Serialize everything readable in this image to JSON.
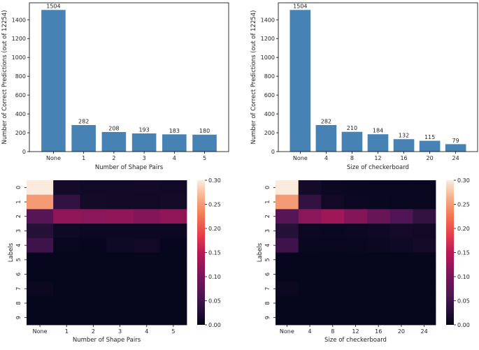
{
  "chart_data": [
    {
      "id": "bar-left",
      "type": "bar",
      "title": "",
      "xlabel": "Number of Shape Pairs",
      "ylabel": "Number of Correct Predictions (out of 12254)",
      "categories": [
        "None",
        "1",
        "2",
        "3",
        "4",
        "5"
      ],
      "values": [
        1504,
        282,
        208,
        193,
        183,
        180
      ],
      "data_labels": [
        "1504",
        "282",
        "208",
        "193",
        "183",
        "180"
      ],
      "ylim": [
        0,
        1580
      ],
      "yticks": [
        0,
        200,
        400,
        600,
        800,
        1000,
        1200,
        1400
      ],
      "bar_color": "#4682b4"
    },
    {
      "id": "bar-right",
      "type": "bar",
      "title": "",
      "xlabel": "Size of checkerboard",
      "ylabel": "Number of Correct Predictions (out of 12254)",
      "categories": [
        "None",
        "4",
        "8",
        "12",
        "16",
        "20",
        "24"
      ],
      "values": [
        1504,
        282,
        210,
        184,
        132,
        115,
        79
      ],
      "data_labels": [
        "1504",
        "282",
        "210",
        "184",
        "132",
        "115",
        "79"
      ],
      "ylim": [
        0,
        1580
      ],
      "yticks": [
        0,
        200,
        400,
        600,
        800,
        1000,
        1200,
        1400
      ],
      "bar_color": "#4682b4"
    },
    {
      "id": "heat-left",
      "type": "heatmap",
      "xlabel": "Number of Shape Pairs",
      "ylabel": "Labels",
      "x_categories": [
        "None",
        "1",
        "2",
        "3",
        "4",
        "5"
      ],
      "y_categories": [
        "0",
        "1",
        "2",
        "3",
        "4",
        "5",
        "6",
        "7",
        "8",
        "9"
      ],
      "values": [
        [
          0.3,
          0.015,
          0.012,
          0.012,
          0.014,
          0.012
        ],
        [
          0.25,
          0.04,
          0.015,
          0.012,
          0.012,
          0.015
        ],
        [
          0.07,
          0.12,
          0.115,
          0.12,
          0.11,
          0.12
        ],
        [
          0.03,
          0.01,
          0.008,
          0.008,
          0.008,
          0.008
        ],
        [
          0.05,
          0.005,
          0.004,
          0.01,
          0.012,
          0.004
        ],
        [
          0.004,
          0.003,
          0.003,
          0.003,
          0.003,
          0.003
        ],
        [
          0.003,
          0.003,
          0.003,
          0.003,
          0.003,
          0.003
        ],
        [
          0.008,
          0.003,
          0.003,
          0.003,
          0.003,
          0.003
        ],
        [
          0.003,
          0.003,
          0.003,
          0.003,
          0.003,
          0.003
        ],
        [
          0.003,
          0.003,
          0.003,
          0.003,
          0.003,
          0.003
        ]
      ],
      "vmin": 0.0,
      "vmax": 0.3,
      "colorbar_ticks": [
        "0.00",
        "0.05",
        "0.10",
        "0.15",
        "0.20",
        "0.25",
        "0.30"
      ],
      "colorbar_values": [
        0.0,
        0.05,
        0.1,
        0.15,
        0.2,
        0.25,
        0.3
      ],
      "colormap": "rocket"
    },
    {
      "id": "heat-right",
      "type": "heatmap",
      "xlabel": "Size of checkerboard",
      "ylabel": "Labels",
      "x_categories": [
        "None",
        "4",
        "8",
        "12",
        "16",
        "20",
        "24"
      ],
      "y_categories": [
        "0",
        "1",
        "2",
        "3",
        "4",
        "5",
        "6",
        "7",
        "8",
        "9"
      ],
      "values": [
        [
          0.3,
          0.015,
          0.008,
          0.006,
          0.005,
          0.005,
          0.005
        ],
        [
          0.25,
          0.04,
          0.012,
          0.008,
          0.006,
          0.005,
          0.005
        ],
        [
          0.07,
          0.115,
          0.13,
          0.11,
          0.085,
          0.065,
          0.04
        ],
        [
          0.03,
          0.008,
          0.006,
          0.008,
          0.01,
          0.015,
          0.012
        ],
        [
          0.05,
          0.006,
          0.005,
          0.006,
          0.008,
          0.01,
          0.015
        ],
        [
          0.004,
          0.003,
          0.003,
          0.003,
          0.003,
          0.003,
          0.003
        ],
        [
          0.003,
          0.003,
          0.003,
          0.003,
          0.003,
          0.003,
          0.003
        ],
        [
          0.008,
          0.003,
          0.003,
          0.003,
          0.003,
          0.003,
          0.003
        ],
        [
          0.003,
          0.003,
          0.003,
          0.003,
          0.003,
          0.003,
          0.003
        ],
        [
          0.003,
          0.003,
          0.003,
          0.003,
          0.003,
          0.003,
          0.003
        ]
      ],
      "vmin": 0.0,
      "vmax": 0.3,
      "colorbar_ticks": [
        "0.00",
        "0.05",
        "0.10",
        "0.15",
        "0.20",
        "0.25",
        "0.30"
      ],
      "colorbar_values": [
        0.0,
        0.05,
        0.1,
        0.15,
        0.2,
        0.25,
        0.3
      ],
      "colormap": "rocket"
    }
  ]
}
